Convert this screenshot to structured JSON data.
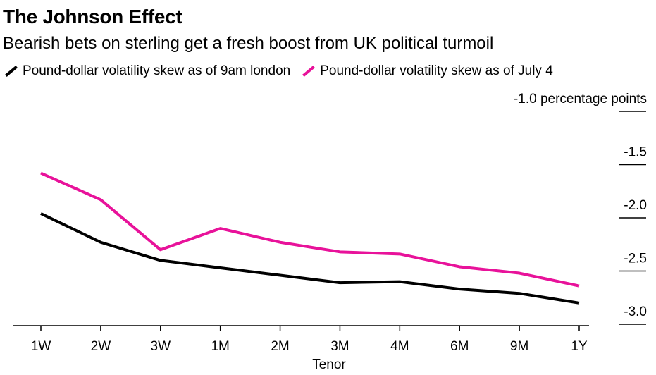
{
  "chart_data": {
    "type": "line",
    "title": "The Johnson Effect",
    "subtitle": "Bearish bets on sterling get a fresh boost from UK political turmoil",
    "xlabel": "Tenor",
    "ylabel": "",
    "yunit_label": "-1.0 percentage points",
    "categories": [
      "1W",
      "2W",
      "3W",
      "1M",
      "2M",
      "3M",
      "4M",
      "6M",
      "9M",
      "1Y"
    ],
    "ylim": [
      -3.0,
      -1.0
    ],
    "yticks": [
      -1.0,
      -1.5,
      -2.0,
      -2.5,
      -3.0
    ],
    "ytick_labels": [
      "-1.0 percentage points",
      "-1.5",
      "-2.0",
      "-2.5",
      "-3.0"
    ],
    "series": [
      {
        "name": "Pound-dollar volatility skew as of 9am london",
        "color": "#000000",
        "values": [
          -1.96,
          -2.23,
          -2.4,
          -2.47,
          -2.54,
          -2.61,
          -2.6,
          -2.67,
          -2.71,
          -2.8
        ]
      },
      {
        "name": "Pound-dollar volatility skew as of July 4",
        "color": "#e8129a",
        "values": [
          -1.58,
          -1.83,
          -2.3,
          -2.1,
          -2.23,
          -2.32,
          -2.34,
          -2.46,
          -2.52,
          -2.64
        ]
      }
    ]
  }
}
